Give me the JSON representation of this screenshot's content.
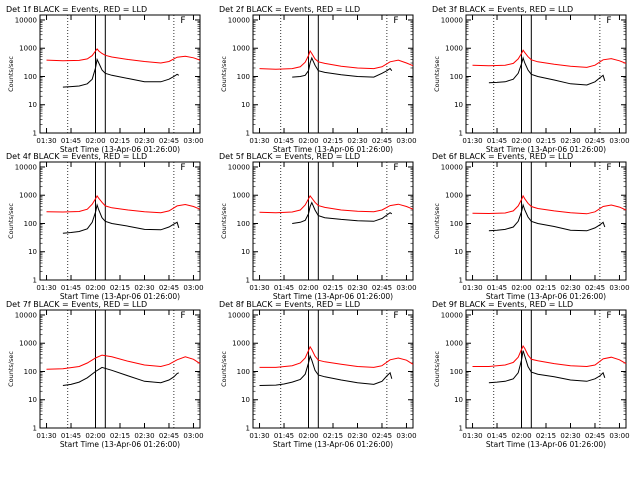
{
  "figure": {
    "xlabel": "Start Time (13-Apr-06 01:26:00)",
    "ylabel": "Counts/sec",
    "x_ticks": [
      "01:30",
      "01:45",
      "02:00",
      "02:15",
      "02:30",
      "02:45",
      "03:00"
    ],
    "y_ticks": [
      "1",
      "10",
      "100",
      "1000",
      "10000"
    ],
    "colors": {
      "events": "#000000",
      "lld": "#ff0000",
      "axes": "#000000"
    }
  },
  "chart_data": [
    {
      "type": "line",
      "title": "Det 1f BLACK = Events, RED = LLD",
      "xlabel": "Start Time (13-Apr-06 01:26:00)",
      "ylabel": "Counts/sec",
      "ylog": true,
      "ylim": [
        1,
        15000
      ],
      "xlim": [
        "01:26",
        "03:04"
      ],
      "markers": {
        "solid": [
          "02:00",
          "02:06"
        ],
        "dotted": [
          "01:43",
          "02:48"
        ],
        "flag": "F",
        "flag_at": "02:52"
      },
      "series": [
        {
          "name": "Events",
          "color": "#000000",
          "x": [
            "01:40",
            "01:45",
            "01:50",
            "01:55",
            "01:58",
            "02:00",
            "02:01",
            "02:02",
            "02:04",
            "02:06",
            "02:10",
            "02:20",
            "02:30",
            "02:40",
            "02:45",
            "02:48",
            "02:50",
            "02:51"
          ],
          "values": [
            42,
            44,
            46,
            55,
            80,
            200,
            400,
            300,
            170,
            130,
            110,
            85,
            65,
            65,
            80,
            100,
            120,
            110
          ]
        },
        {
          "name": "LLD",
          "color": "#ff0000",
          "x": [
            "01:30",
            "01:40",
            "01:50",
            "01:55",
            "01:58",
            "02:00",
            "02:01",
            "02:02",
            "02:04",
            "02:06",
            "02:10",
            "02:20",
            "02:30",
            "02:40",
            "02:45",
            "02:50",
            "02:55",
            "03:00",
            "03:04"
          ],
          "values": [
            380,
            360,
            370,
            420,
            550,
            800,
            950,
            800,
            650,
            560,
            490,
            400,
            340,
            300,
            340,
            480,
            520,
            460,
            380
          ]
        }
      ]
    },
    {
      "type": "line",
      "title": "Det 2f BLACK = Events, RED = LLD",
      "xlabel": "Start Time (13-Apr-06 01:26:00)",
      "ylabel": "Counts/sec",
      "ylog": true,
      "ylim": [
        1,
        15000
      ],
      "xlim": [
        "01:26",
        "03:04"
      ],
      "markers": {
        "solid": [
          "02:00",
          "02:06"
        ],
        "dotted": [
          "01:43",
          "02:48"
        ],
        "flag": "F",
        "flag_at": "02:52"
      },
      "series": [
        {
          "name": "Events",
          "color": "#000000",
          "x": [
            "01:50",
            "01:55",
            "01:58",
            "02:00",
            "02:01",
            "02:02",
            "02:04",
            "02:06",
            "02:10",
            "02:20",
            "02:30",
            "02:40",
            "02:45",
            "02:48",
            "02:50",
            "02:51"
          ],
          "values": [
            95,
            100,
            110,
            160,
            300,
            450,
            250,
            160,
            140,
            115,
            100,
            95,
            130,
            160,
            190,
            160
          ]
        },
        {
          "name": "LLD",
          "color": "#ff0000",
          "x": [
            "01:30",
            "01:40",
            "01:50",
            "01:55",
            "01:58",
            "02:00",
            "02:01",
            "02:02",
            "02:04",
            "02:06",
            "02:10",
            "02:20",
            "02:30",
            "02:40",
            "02:45",
            "02:50",
            "02:55",
            "03:00",
            "03:04"
          ],
          "values": [
            190,
            180,
            190,
            220,
            320,
            550,
            800,
            650,
            420,
            330,
            290,
            230,
            200,
            190,
            220,
            330,
            380,
            300,
            240
          ]
        }
      ]
    },
    {
      "type": "line",
      "title": "Det 3f BLACK = Events, RED = LLD",
      "xlabel": "Start Time (13-Apr-06 01:26:00)",
      "ylabel": "Counts/sec",
      "ylog": true,
      "ylim": [
        1,
        15000
      ],
      "xlim": [
        "01:26",
        "03:04"
      ],
      "markers": {
        "solid": [
          "02:00",
          "02:06"
        ],
        "dotted": [
          "01:43",
          "02:48"
        ],
        "flag": "F",
        "flag_at": "02:52"
      },
      "series": [
        {
          "name": "Events",
          "color": "#000000",
          "x": [
            "01:40",
            "01:45",
            "01:50",
            "01:55",
            "01:58",
            "02:00",
            "02:01",
            "02:02",
            "02:04",
            "02:06",
            "02:10",
            "02:20",
            "02:30",
            "02:40",
            "02:45",
            "02:48",
            "02:50",
            "02:51"
          ],
          "values": [
            60,
            62,
            65,
            80,
            130,
            280,
            450,
            300,
            170,
            120,
            100,
            75,
            55,
            50,
            65,
            90,
            110,
            70
          ]
        },
        {
          "name": "LLD",
          "color": "#ff0000",
          "x": [
            "01:30",
            "01:40",
            "01:50",
            "01:55",
            "01:58",
            "02:00",
            "02:01",
            "02:02",
            "02:04",
            "02:06",
            "02:10",
            "02:20",
            "02:30",
            "02:40",
            "02:45",
            "02:50",
            "02:55",
            "03:00",
            "03:04"
          ],
          "values": [
            250,
            240,
            250,
            290,
            420,
            650,
            850,
            700,
            500,
            390,
            330,
            270,
            230,
            210,
            250,
            390,
            430,
            360,
            290
          ]
        }
      ]
    },
    {
      "type": "line",
      "title": "Det 4f BLACK = Events, RED = LLD",
      "xlabel": "Start Time (13-Apr-06 01:26:00)",
      "ylabel": "Counts/sec",
      "ylog": true,
      "ylim": [
        1,
        15000
      ],
      "xlim": [
        "01:26",
        "03:04"
      ],
      "markers": {
        "solid": [
          "02:00",
          "02:06"
        ],
        "dotted": [
          "01:43",
          "02:48"
        ],
        "flag": "F",
        "flag_at": "02:52"
      },
      "series": [
        {
          "name": "Events",
          "color": "#000000",
          "x": [
            "01:40",
            "01:45",
            "01:50",
            "01:55",
            "01:58",
            "02:00",
            "02:01",
            "02:02",
            "02:04",
            "02:06",
            "02:10",
            "02:20",
            "02:30",
            "02:40",
            "02:45",
            "02:48",
            "02:50",
            "02:51"
          ],
          "values": [
            45,
            48,
            52,
            65,
            110,
            250,
            450,
            300,
            160,
            120,
            100,
            80,
            62,
            60,
            75,
            95,
            110,
            70
          ]
        },
        {
          "name": "LLD",
          "color": "#ff0000",
          "x": [
            "01:30",
            "01:40",
            "01:50",
            "01:55",
            "01:58",
            "02:00",
            "02:01",
            "02:02",
            "02:04",
            "02:06",
            "02:10",
            "02:20",
            "02:30",
            "02:40",
            "02:45",
            "02:50",
            "02:55",
            "03:00",
            "03:04"
          ],
          "values": [
            260,
            255,
            265,
            320,
            480,
            750,
            950,
            780,
            560,
            420,
            360,
            300,
            260,
            240,
            280,
            420,
            470,
            400,
            320
          ]
        }
      ]
    },
    {
      "type": "line",
      "title": "Det 5f BLACK = Events, RED = LLD",
      "xlabel": "Start Time (13-Apr-06 01:26:00)",
      "ylabel": "Counts/sec",
      "ylog": true,
      "ylim": [
        1,
        15000
      ],
      "xlim": [
        "01:26",
        "03:04"
      ],
      "markers": {
        "solid": [
          "02:00",
          "02:06"
        ],
        "dotted": [
          "01:43",
          "02:48"
        ],
        "flag": "F",
        "flag_at": "02:52"
      },
      "series": [
        {
          "name": "Events",
          "color": "#000000",
          "x": [
            "01:50",
            "01:55",
            "01:58",
            "02:00",
            "02:01",
            "02:02",
            "02:04",
            "02:06",
            "02:10",
            "02:20",
            "02:30",
            "02:40",
            "02:45",
            "02:48",
            "02:50",
            "02:51"
          ],
          "values": [
            100,
            110,
            130,
            220,
            400,
            550,
            300,
            190,
            160,
            140,
            125,
            120,
            150,
            200,
            240,
            220
          ]
        },
        {
          "name": "LLD",
          "color": "#ff0000",
          "x": [
            "01:30",
            "01:40",
            "01:50",
            "01:55",
            "01:58",
            "02:00",
            "02:01",
            "02:02",
            "02:04",
            "02:06",
            "02:10",
            "02:20",
            "02:30",
            "02:40",
            "02:45",
            "02:50",
            "02:55",
            "03:00",
            "03:04"
          ],
          "values": [
            250,
            240,
            255,
            300,
            450,
            750,
            950,
            800,
            560,
            430,
            370,
            300,
            270,
            260,
            300,
            430,
            480,
            400,
            320
          ]
        }
      ]
    },
    {
      "type": "line",
      "title": "Det 6f BLACK = Events, RED = LLD",
      "xlabel": "Start Time (13-Apr-06 01:26:00)",
      "ylabel": "Counts/sec",
      "ylog": true,
      "ylim": [
        1,
        15000
      ],
      "xlim": [
        "01:26",
        "03:04"
      ],
      "markers": {
        "solid": [
          "02:00",
          "02:06"
        ],
        "dotted": [
          "01:43",
          "02:48"
        ],
        "flag": "F",
        "flag_at": "02:52"
      },
      "series": [
        {
          "name": "Events",
          "color": "#000000",
          "x": [
            "01:40",
            "01:45",
            "01:50",
            "01:55",
            "01:58",
            "02:00",
            "02:01",
            "02:02",
            "02:04",
            "02:06",
            "02:10",
            "02:20",
            "02:30",
            "02:40",
            "02:45",
            "02:48",
            "02:50",
            "02:51"
          ],
          "values": [
            55,
            58,
            62,
            75,
            120,
            260,
            450,
            300,
            170,
            120,
            100,
            78,
            58,
            55,
            70,
            90,
            110,
            75
          ]
        },
        {
          "name": "LLD",
          "color": "#ff0000",
          "x": [
            "01:30",
            "01:40",
            "01:50",
            "01:55",
            "01:58",
            "02:00",
            "02:01",
            "02:02",
            "02:04",
            "02:06",
            "02:10",
            "02:20",
            "02:30",
            "02:40",
            "02:45",
            "02:50",
            "02:55",
            "03:00",
            "03:04"
          ],
          "values": [
            230,
            225,
            235,
            280,
            420,
            700,
            950,
            750,
            520,
            400,
            340,
            280,
            240,
            220,
            260,
            400,
            450,
            380,
            300
          ]
        }
      ]
    },
    {
      "type": "line",
      "title": "Det 7f BLACK = Events, RED = LLD",
      "xlabel": "Start Time (13-Apr-06 01:26:00)",
      "ylabel": "Counts/sec",
      "ylog": true,
      "ylim": [
        1,
        15000
      ],
      "xlim": [
        "01:26",
        "03:04"
      ],
      "markers": {
        "solid": [
          "02:00",
          "02:06"
        ],
        "dotted": [
          "01:43",
          "02:48"
        ],
        "flag": "F",
        "flag_at": "02:52"
      },
      "series": [
        {
          "name": "Events",
          "color": "#000000",
          "x": [
            "01:40",
            "01:45",
            "01:50",
            "01:55",
            "02:00",
            "02:04",
            "02:10",
            "02:20",
            "02:30",
            "02:40",
            "02:45",
            "02:48",
            "02:50",
            "02:51"
          ],
          "values": [
            32,
            35,
            42,
            60,
            100,
            140,
            110,
            70,
            45,
            40,
            50,
            65,
            85,
            90
          ]
        },
        {
          "name": "LLD",
          "color": "#ff0000",
          "x": [
            "01:30",
            "01:40",
            "01:50",
            "01:55",
            "02:00",
            "02:04",
            "02:10",
            "02:20",
            "02:30",
            "02:40",
            "02:45",
            "02:50",
            "02:55",
            "03:00",
            "03:04"
          ],
          "values": [
            120,
            125,
            150,
            200,
            300,
            380,
            330,
            230,
            170,
            150,
            180,
            260,
            330,
            270,
            190
          ]
        }
      ]
    },
    {
      "type": "line",
      "title": "Det 8f BLACK = Events, RED = LLD",
      "xlabel": "Start Time (13-Apr-06 01:26:00)",
      "ylabel": "Counts/sec",
      "ylog": true,
      "ylim": [
        1,
        15000
      ],
      "xlim": [
        "01:26",
        "03:04"
      ],
      "markers": {
        "solid": [
          "02:00",
          "02:06"
        ],
        "dotted": [
          "01:43",
          "02:48"
        ],
        "flag": "F",
        "flag_at": "02:52"
      },
      "series": [
        {
          "name": "Events",
          "color": "#000000",
          "x": [
            "01:30",
            "01:40",
            "01:45",
            "01:50",
            "01:55",
            "01:58",
            "02:00",
            "02:01",
            "02:02",
            "02:04",
            "02:06",
            "02:10",
            "02:20",
            "02:30",
            "02:40",
            "02:45",
            "02:48",
            "02:50",
            "02:51"
          ],
          "values": [
            32,
            33,
            36,
            42,
            52,
            80,
            200,
            350,
            250,
            110,
            75,
            65,
            50,
            40,
            35,
            45,
            70,
            90,
            55
          ]
        },
        {
          "name": "LLD",
          "color": "#ff0000",
          "x": [
            "01:30",
            "01:40",
            "01:50",
            "01:55",
            "01:58",
            "02:00",
            "02:01",
            "02:02",
            "02:04",
            "02:06",
            "02:10",
            "02:20",
            "02:30",
            "02:40",
            "02:45",
            "02:50",
            "02:55",
            "03:00",
            "03:04"
          ],
          "values": [
            140,
            140,
            160,
            200,
            300,
            550,
            750,
            600,
            350,
            250,
            220,
            180,
            150,
            140,
            160,
            260,
            300,
            250,
            180
          ]
        }
      ]
    },
    {
      "type": "line",
      "title": "Det 9f BLACK = Events, RED = LLD",
      "xlabel": "Start Time (13-Apr-06 01:26:00)",
      "ylabel": "Counts/sec",
      "ylog": true,
      "ylim": [
        1,
        15000
      ],
      "xlim": [
        "01:26",
        "03:04"
      ],
      "markers": {
        "solid": [
          "02:00",
          "02:06"
        ],
        "dotted": [
          "01:43",
          "02:48"
        ],
        "flag": "F",
        "flag_at": "02:52"
      },
      "series": [
        {
          "name": "Events",
          "color": "#000000",
          "x": [
            "01:40",
            "01:45",
            "01:50",
            "01:55",
            "01:58",
            "02:00",
            "02:01",
            "02:02",
            "02:04",
            "02:06",
            "02:10",
            "02:20",
            "02:30",
            "02:40",
            "02:45",
            "02:48",
            "02:50",
            "02:51"
          ],
          "values": [
            40,
            42,
            45,
            55,
            90,
            250,
            550,
            350,
            150,
            95,
            80,
            65,
            50,
            45,
            55,
            70,
            90,
            60
          ]
        },
        {
          "name": "LLD",
          "color": "#ff0000",
          "x": [
            "01:30",
            "01:40",
            "01:50",
            "01:55",
            "01:58",
            "02:00",
            "02:01",
            "02:02",
            "02:04",
            "02:06",
            "02:10",
            "02:20",
            "02:30",
            "02:40",
            "02:45",
            "02:50",
            "02:55",
            "03:00",
            "03:04"
          ],
          "values": [
            150,
            150,
            170,
            210,
            320,
            600,
            800,
            650,
            380,
            270,
            240,
            190,
            160,
            150,
            170,
            280,
            320,
            260,
            190
          ]
        }
      ]
    }
  ]
}
